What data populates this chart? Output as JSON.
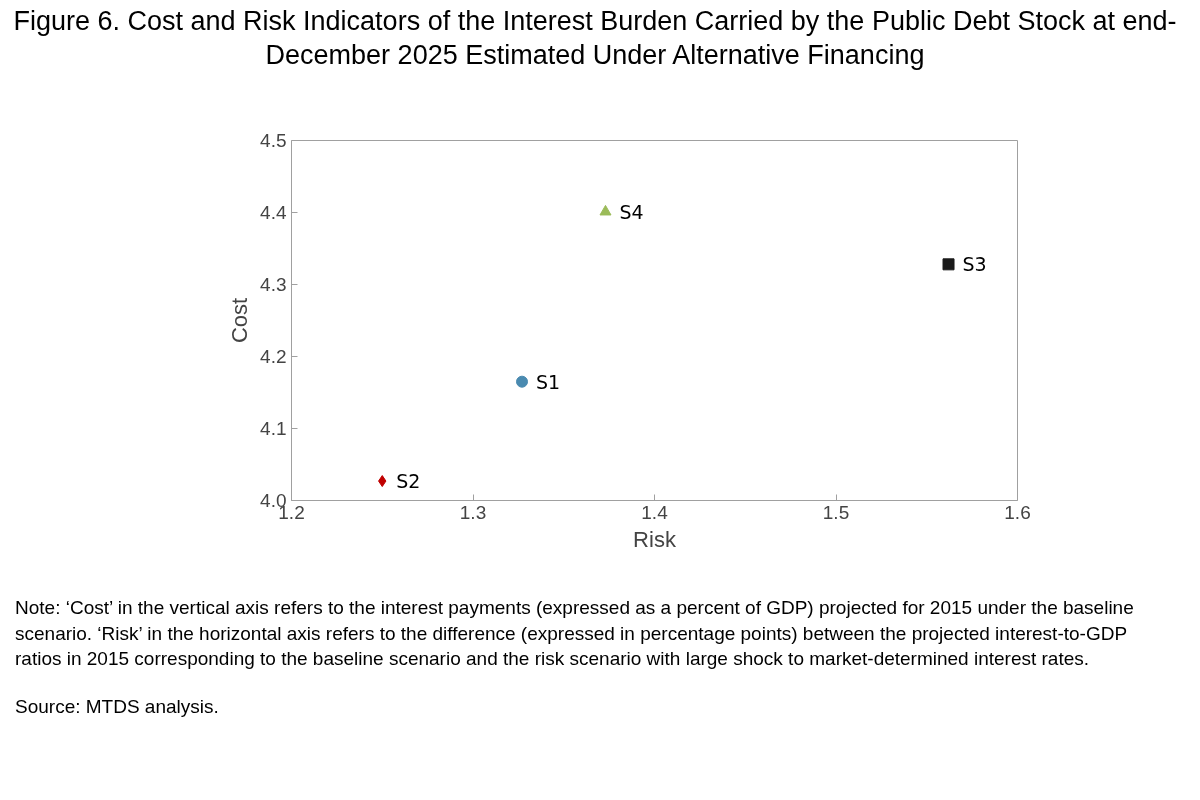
{
  "chart_data": {
    "type": "scatter",
    "title": "Figure 6. Cost and Risk Indicators of the Interest Burden Carried by the Public Debt Stock at end-December 2025 Estimated Under Alternative Financing",
    "xlabel": "Risk",
    "ylabel": "Cost",
    "xlim": [
      1.2,
      1.6
    ],
    "xticks": [
      1.2,
      1.3,
      1.4,
      1.5,
      1.6
    ],
    "ylim": [
      4.0,
      4.5
    ],
    "yticks": [
      {
        "value": 4.0,
        "label": "4.0"
      },
      4.1,
      4.2,
      4.3,
      4.4,
      4.5
    ],
    "grid": false,
    "series": [
      {
        "name": "S1",
        "color": "#4a8ab0",
        "marker": "circle",
        "x": [
          1.327
        ],
        "values": [
          4.165
        ]
      },
      {
        "name": "S2",
        "color": "#c00000",
        "marker": "diamond",
        "x": [
          1.25
        ],
        "values": [
          4.027
        ]
      },
      {
        "name": "S3",
        "color": "#1a1a1a",
        "marker": "square",
        "x": [
          1.562
        ],
        "values": [
          4.328
        ]
      },
      {
        "name": "S4",
        "color": "#9bbb59",
        "marker": "triangle",
        "x": [
          1.373
        ],
        "values": [
          4.401
        ]
      }
    ],
    "annotations": [
      "Note: ‘Cost’ in the vertical axis refers to the interest payments (expressed as a percent of GDP) projected for 2015 under the baseline scenario. ‘Risk’ in the horizontal axis refers to the difference (expressed in percentage points) between the projected interest-to-GDP ratios in 2015 corresponding to the baseline scenario and the risk scenario with large shock to market-determined interest rates.",
      "Source: MTDS analysis."
    ]
  }
}
